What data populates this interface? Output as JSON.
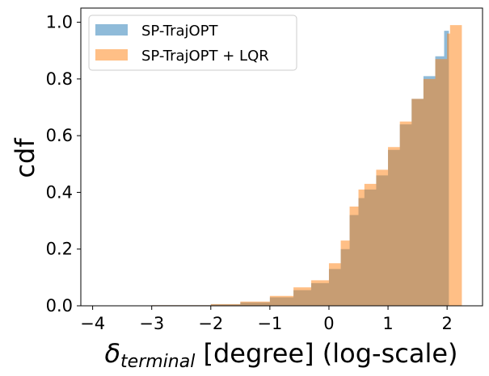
{
  "chart_data": {
    "type": "area",
    "xlabel_main": "δ",
    "xlabel_sub": "terminal",
    "xlabel_rest": " [degree] (log-scale)",
    "ylabel": "cdf",
    "xlim": [
      -4.2,
      2.6
    ],
    "ylim": [
      0,
      1.05
    ],
    "x_ticks": [
      -4,
      -3,
      -2,
      -1,
      0,
      1,
      2
    ],
    "x_tick_labels": [
      "−4",
      "−3",
      "−2",
      "−1",
      "0",
      "1",
      "2"
    ],
    "y_ticks": [
      0.0,
      0.2,
      0.4,
      0.6,
      0.8,
      1.0
    ],
    "y_tick_labels": [
      "0.0",
      "0.2",
      "0.4",
      "0.6",
      "0.8",
      "1.0"
    ],
    "legend_position": "top-left",
    "series": [
      {
        "name": "SP-TrajOPT",
        "color": "#1f77b4",
        "opacity": 0.5,
        "x": [
          -4.0,
          -3.0,
          -2.0,
          -1.5,
          -1.0,
          -0.6,
          -0.3,
          0.0,
          0.2,
          0.35,
          0.5,
          0.6,
          0.8,
          1.0,
          1.2,
          1.4,
          1.6,
          1.8,
          1.95,
          2.03
        ],
        "y": [
          0.0,
          0.002,
          0.005,
          0.012,
          0.03,
          0.055,
          0.08,
          0.13,
          0.2,
          0.32,
          0.38,
          0.41,
          0.46,
          0.55,
          0.64,
          0.73,
          0.81,
          0.88,
          0.97,
          1.0
        ]
      },
      {
        "name": "SP-TrajOPT + LQR",
        "color": "#ff7f0e",
        "opacity": 0.5,
        "x": [
          -4.0,
          -3.0,
          -2.0,
          -1.5,
          -1.0,
          -0.6,
          -0.3,
          0.0,
          0.2,
          0.35,
          0.5,
          0.6,
          0.8,
          1.0,
          1.2,
          1.4,
          1.6,
          1.8,
          2.0,
          2.05,
          2.25
        ],
        "y": [
          0.0,
          0.002,
          0.006,
          0.015,
          0.035,
          0.065,
          0.09,
          0.15,
          0.23,
          0.35,
          0.41,
          0.43,
          0.48,
          0.56,
          0.65,
          0.73,
          0.8,
          0.87,
          0.96,
          0.99,
          1.0
        ]
      }
    ]
  }
}
